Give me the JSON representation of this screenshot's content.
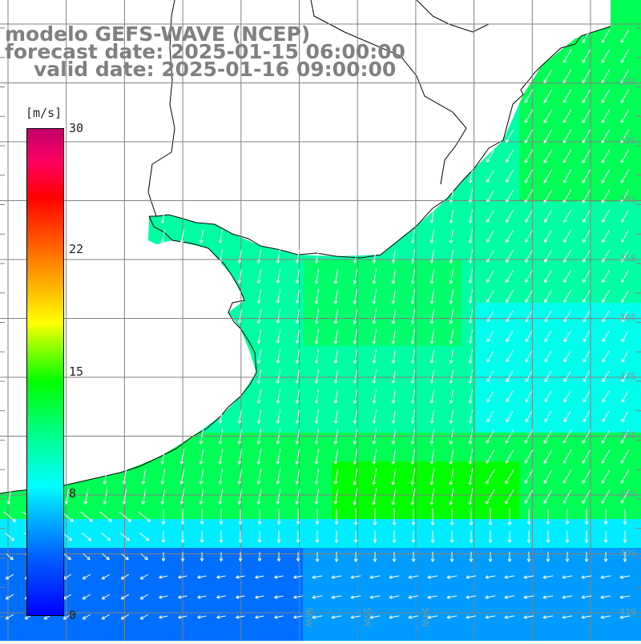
{
  "title": {
    "line1": "modelo GEFS-WAVE (NCEP)",
    "line2": "forecast date: 2025-01-15 06:00:00",
    "line3": "valid date: 2025-01-16 09:00:00"
  },
  "colorbar": {
    "unit": "[m/s]",
    "ticks": [
      "30",
      "22",
      "15",
      "8",
      "0"
    ],
    "min": 0,
    "max": 30
  },
  "lat_labels": [
    "32S",
    "33S",
    "34S",
    "35S",
    "36S",
    "37S",
    "38S",
    "39S",
    "40S",
    "41S"
  ],
  "lon_labels": [
    "56W",
    "55W",
    "54W"
  ],
  "colors": {
    "land": "#ffffff",
    "coast": "#000000",
    "grid": "#808080",
    "arrow": "#ffffff",
    "title": "#808080"
  }
}
